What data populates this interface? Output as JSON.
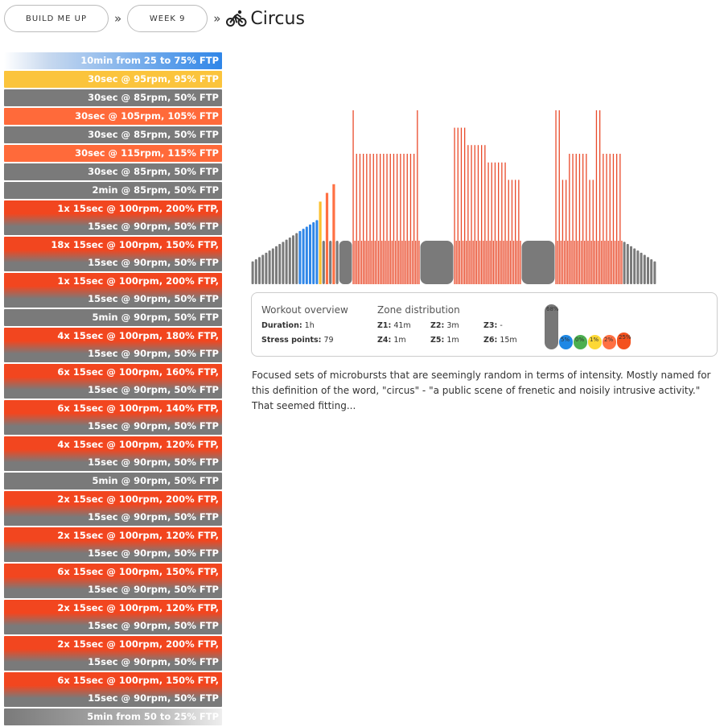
{
  "breadcrumb": {
    "plan": "BUILD ME UP",
    "week": "WEEK 9",
    "separator": "»",
    "title": "Circus",
    "title_icon": "cyclist-icon"
  },
  "intervals": [
    {
      "lines": [
        "10min from 25 to 75% FTP"
      ],
      "style": "warmup"
    },
    {
      "lines": [
        "30sec @ 95rpm, 95% FTP"
      ],
      "style": "yellow"
    },
    {
      "lines": [
        "30sec @ 85rpm, 50% FTP"
      ],
      "style": "gray"
    },
    {
      "lines": [
        "30sec @ 105rpm, 105% FTP"
      ],
      "style": "orange"
    },
    {
      "lines": [
        "30sec @ 85rpm, 50% FTP"
      ],
      "style": "gray"
    },
    {
      "lines": [
        "30sec @ 115rpm, 115% FTP"
      ],
      "style": "orange"
    },
    {
      "lines": [
        "30sec @ 85rpm, 50% FTP"
      ],
      "style": "gray"
    },
    {
      "lines": [
        "2min @ 85rpm, 50% FTP"
      ],
      "style": "gray"
    },
    {
      "lines": [
        "1x 15sec @ 100rpm, 200% FTP,",
        "15sec @ 90rpm, 50% FTP"
      ],
      "style": "repeat"
    },
    {
      "lines": [
        "18x 15sec @ 100rpm, 150% FTP,",
        "15sec @ 90rpm, 50% FTP"
      ],
      "style": "repeat"
    },
    {
      "lines": [
        "1x 15sec @ 100rpm, 200% FTP,",
        "15sec @ 90rpm, 50% FTP"
      ],
      "style": "repeat"
    },
    {
      "lines": [
        "5min @ 90rpm, 50% FTP"
      ],
      "style": "gray"
    },
    {
      "lines": [
        "4x 15sec @ 100rpm, 180% FTP,",
        "15sec @ 90rpm, 50% FTP"
      ],
      "style": "repeat"
    },
    {
      "lines": [
        "6x 15sec @ 100rpm, 160% FTP,",
        "15sec @ 90rpm, 50% FTP"
      ],
      "style": "repeat"
    },
    {
      "lines": [
        "6x 15sec @ 100rpm, 140% FTP,",
        "15sec @ 90rpm, 50% FTP"
      ],
      "style": "repeat"
    },
    {
      "lines": [
        "4x 15sec @ 100rpm, 120% FTP,",
        "15sec @ 90rpm, 50% FTP"
      ],
      "style": "repeat"
    },
    {
      "lines": [
        "5min @ 90rpm, 50% FTP"
      ],
      "style": "gray"
    },
    {
      "lines": [
        "2x 15sec @ 100rpm, 200% FTP,",
        "15sec @ 90rpm, 50% FTP"
      ],
      "style": "repeat"
    },
    {
      "lines": [
        "2x 15sec @ 100rpm, 120% FTP,",
        "15sec @ 90rpm, 50% FTP"
      ],
      "style": "repeat"
    },
    {
      "lines": [
        "6x 15sec @ 100rpm, 150% FTP,",
        "15sec @ 90rpm, 50% FTP"
      ],
      "style": "repeat"
    },
    {
      "lines": [
        "2x 15sec @ 100rpm, 120% FTP,",
        "15sec @ 90rpm, 50% FTP"
      ],
      "style": "repeat"
    },
    {
      "lines": [
        "2x 15sec @ 100rpm, 200% FTP,",
        "15sec @ 90rpm, 50% FTP"
      ],
      "style": "repeat"
    },
    {
      "lines": [
        "6x 15sec @ 100rpm, 150% FTP,",
        "15sec @ 90rpm, 50% FTP"
      ],
      "style": "repeat"
    },
    {
      "lines": [
        "5min from 50 to 25% FTP"
      ],
      "style": "cooldown"
    }
  ],
  "overview": {
    "heading": "Workout overview",
    "duration_label": "Duration:",
    "duration_value": "1h",
    "stress_label": "Stress points:",
    "stress_value": "79",
    "zones_heading": "Zone distribution",
    "zones": [
      {
        "label": "Z1:",
        "value": "41m"
      },
      {
        "label": "Z2:",
        "value": "3m"
      },
      {
        "label": "Z3:",
        "value": "-"
      },
      {
        "label": "Z4:",
        "value": "1m"
      },
      {
        "label": "Z5:",
        "value": "1m"
      },
      {
        "label": "Z6:",
        "value": "15m"
      }
    ],
    "pills": [
      {
        "label": "68%",
        "fraction": 0.68,
        "color": "#777777"
      },
      {
        "label": "5%",
        "fraction": 0.05,
        "color": "#1e88e5"
      },
      {
        "label": "0%",
        "fraction": 0.0,
        "color": "#4caf50"
      },
      {
        "label": "1%",
        "fraction": 0.01,
        "color": "#fdd835"
      },
      {
        "label": "2%",
        "fraction": 0.02,
        "color": "#ff7043"
      },
      {
        "label": "25%",
        "fraction": 0.25,
        "color": "#f4511e"
      }
    ]
  },
  "description": "Focused sets of microbursts that are seemingly random in terms of intensity. Mostly named for this definition of the word, \"circus\" - \"a public scene of frenetic and noisily intrusive activity.\" That seemed fitting...",
  "colors": {
    "gray": "#7a7a7a",
    "blue": "#2f86e8",
    "yellow": "#fbc43c",
    "orange": "#ff6a3a",
    "red": "#f2461f",
    "chart_red": "#e94a2a",
    "chart_orange": "#ff7043",
    "chart_yellow": "#fbc02d"
  }
}
